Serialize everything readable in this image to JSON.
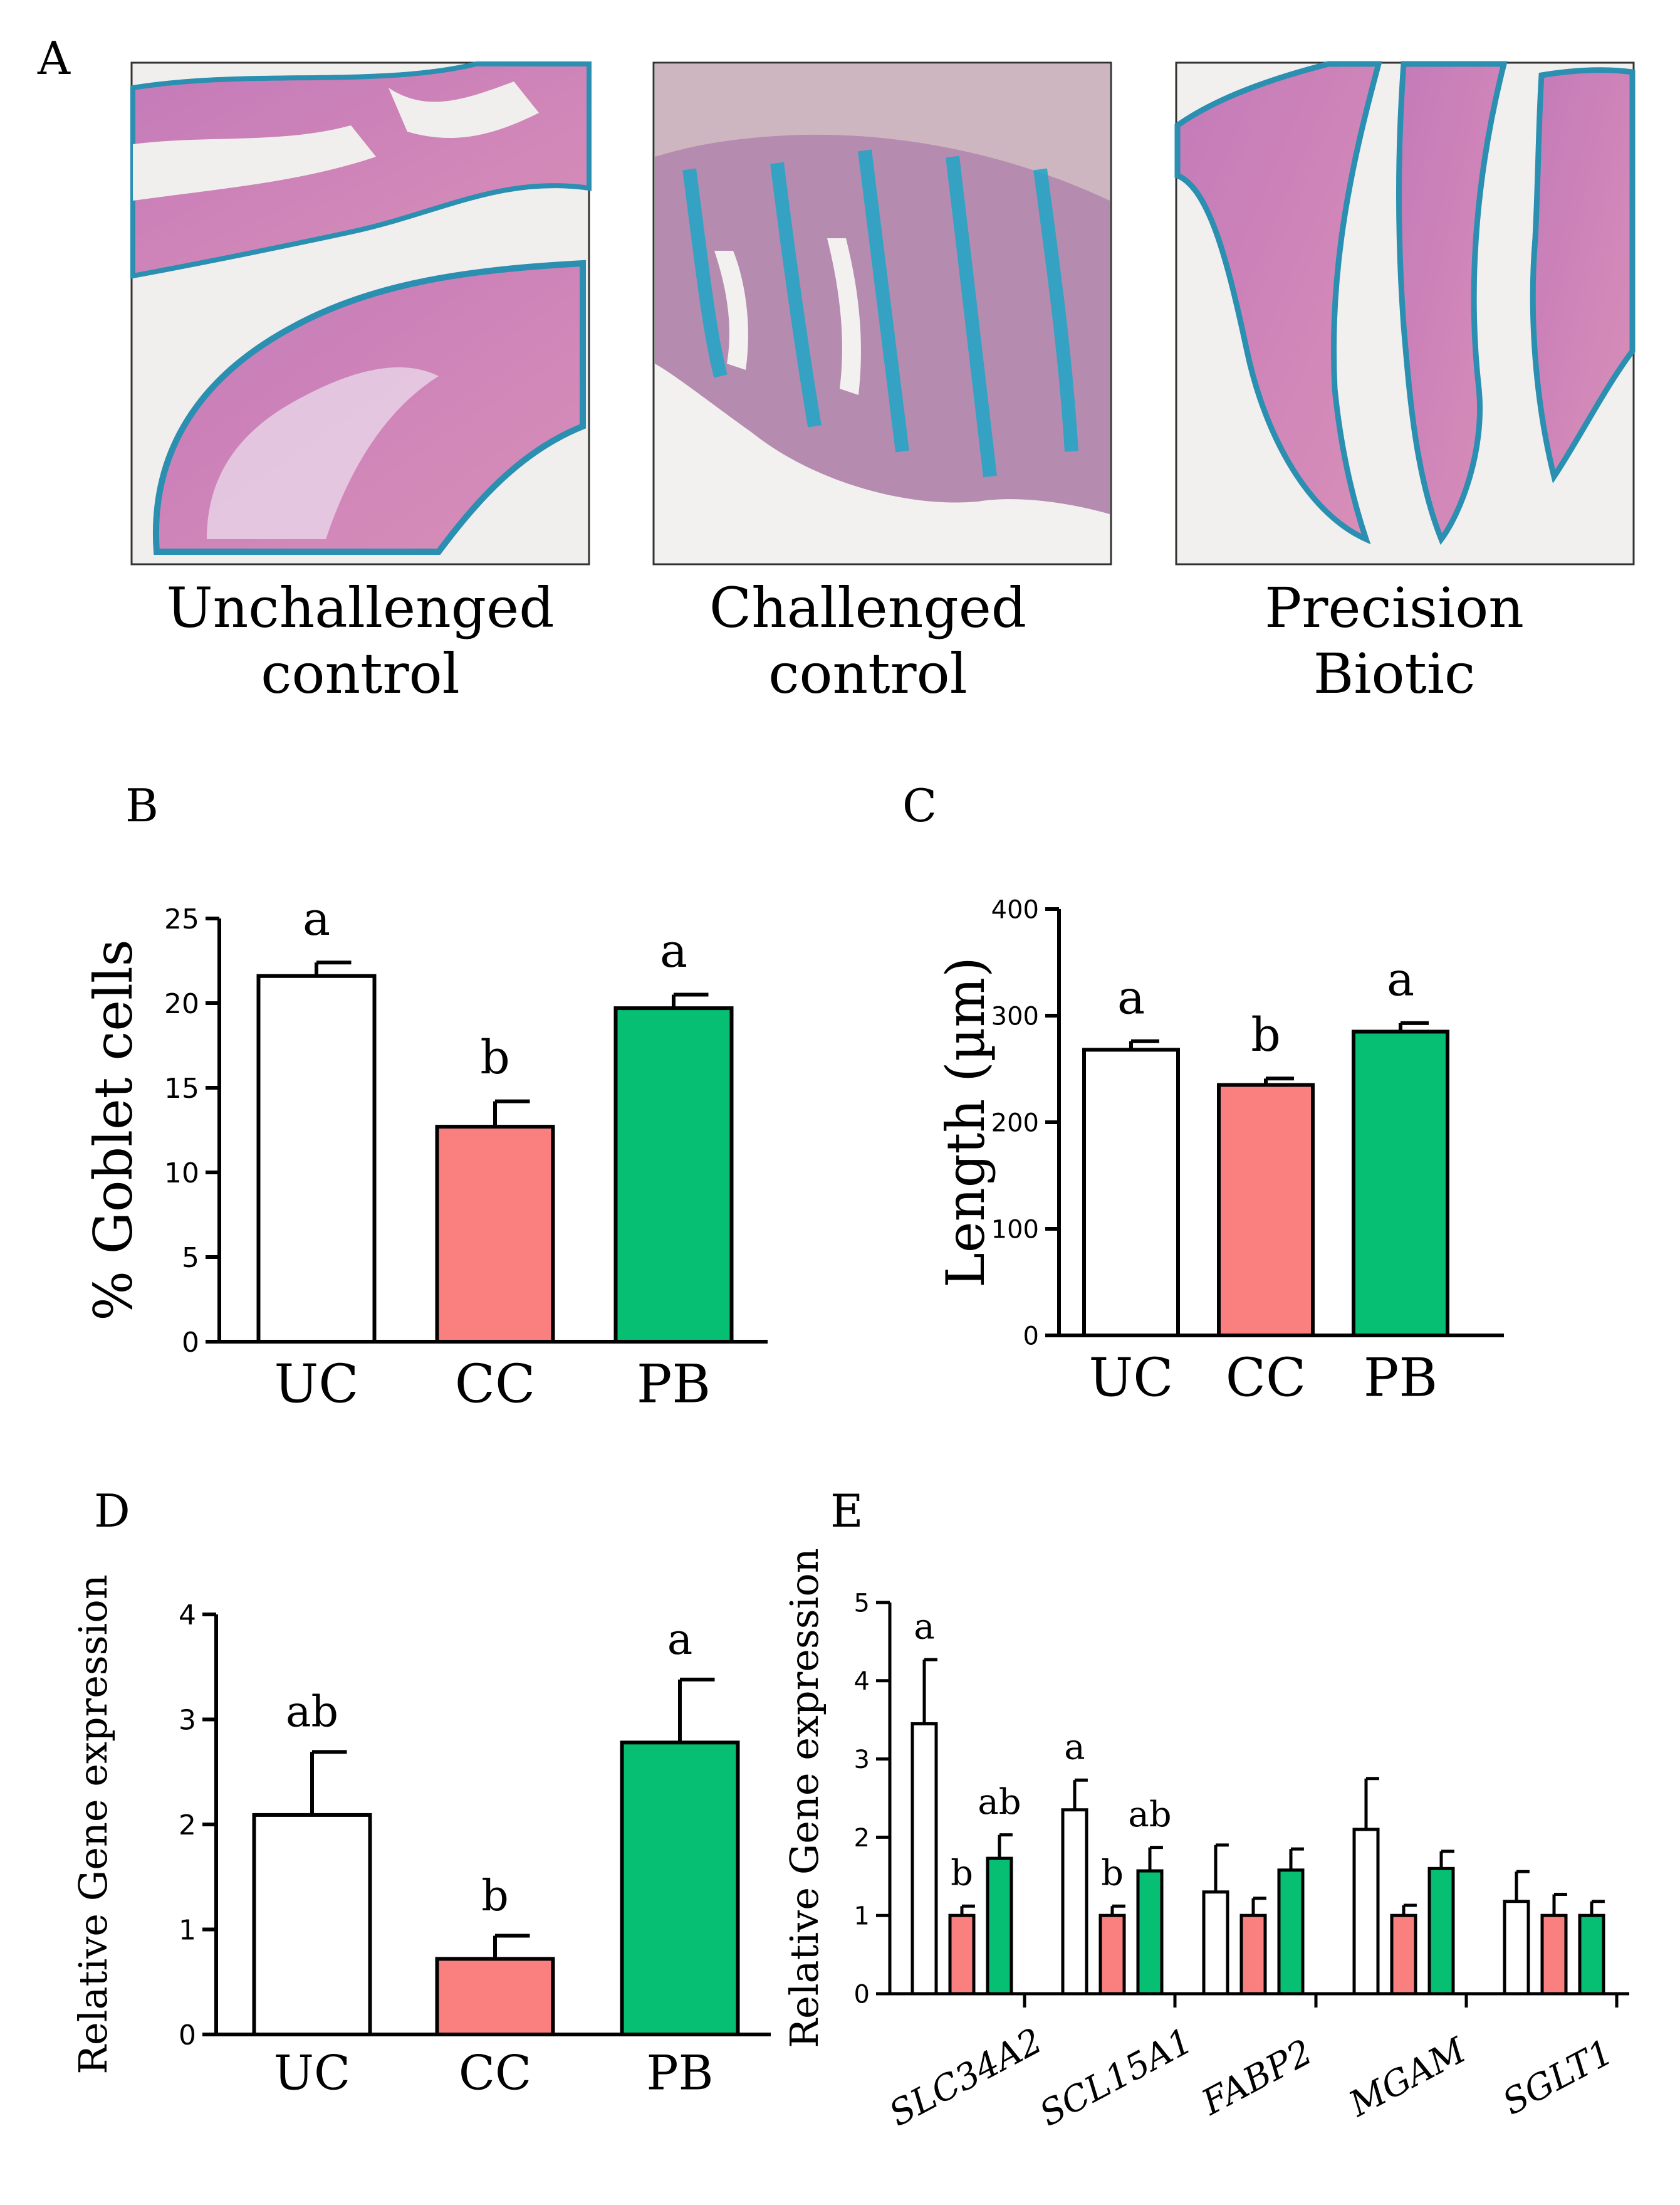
{
  "colors": {
    "uc": "#ffffff",
    "cc": "#fa8080",
    "pb": "#06bf72",
    "axis": "#000000"
  },
  "panel_a": {
    "letter": "A",
    "images": [
      {
        "label_line1": "Unchallenged",
        "label_line2": "control"
      },
      {
        "label_line1": "Challenged",
        "label_line2": "control"
      },
      {
        "label_line1": "Precision",
        "label_line2": "Biotic"
      }
    ]
  },
  "chart_data": [
    {
      "panel": "B",
      "type": "bar",
      "categories": [
        "UC",
        "CC",
        "PB"
      ],
      "values": [
        21.6,
        12.7,
        19.7
      ],
      "errors": [
        0.8,
        1.5,
        0.8
      ],
      "letters": [
        "a",
        "b",
        "a"
      ],
      "ylabel": "% Goblet cells",
      "ylim": [
        0,
        25
      ],
      "yticks": [
        0,
        5,
        10,
        15,
        20,
        25
      ]
    },
    {
      "panel": "C",
      "type": "bar",
      "categories": [
        "UC",
        "CC",
        "PB"
      ],
      "values": [
        268,
        235,
        285
      ],
      "errors": [
        8,
        6,
        8
      ],
      "letters": [
        "a",
        "b",
        "a"
      ],
      "ylabel": "Length (µm)",
      "ylim": [
        0,
        400
      ],
      "yticks": [
        0,
        100,
        200,
        300,
        400
      ]
    },
    {
      "panel": "D",
      "type": "bar",
      "categories": [
        "UC",
        "CC",
        "PB"
      ],
      "values": [
        2.09,
        0.72,
        2.78
      ],
      "errors": [
        0.6,
        0.22,
        0.6
      ],
      "letters": [
        "ab",
        "b",
        "a"
      ],
      "ylabel": "Relative Gene expression",
      "ylim": [
        0,
        4
      ],
      "yticks": [
        0,
        1,
        2,
        3,
        4
      ]
    },
    {
      "panel": "E",
      "type": "bar",
      "categories": [
        "SLC34A2",
        "SCL15A1",
        "FABP2",
        "MGAM",
        "SGLT1"
      ],
      "series": [
        {
          "name": "UC",
          "values": [
            3.45,
            2.35,
            1.3,
            2.1,
            1.18
          ],
          "errors": [
            0.82,
            0.38,
            0.6,
            0.65,
            0.38
          ],
          "letters": [
            "a",
            "a",
            "",
            "",
            ""
          ]
        },
        {
          "name": "CC",
          "values": [
            1.0,
            1.0,
            1.0,
            1.0,
            1.0
          ],
          "errors": [
            0.12,
            0.12,
            0.22,
            0.13,
            0.27
          ],
          "letters": [
            "b",
            "b",
            "",
            "",
            ""
          ]
        },
        {
          "name": "PB",
          "values": [
            1.73,
            1.57,
            1.58,
            1.6,
            1.0
          ],
          "errors": [
            0.3,
            0.3,
            0.27,
            0.22,
            0.18
          ],
          "letters": [
            "ab",
            "ab",
            "",
            "",
            ""
          ]
        }
      ],
      "ylabel": "Relative Gene expression",
      "ylim": [
        0,
        5
      ],
      "yticks": [
        0,
        1,
        2,
        3,
        4,
        5
      ]
    }
  ]
}
